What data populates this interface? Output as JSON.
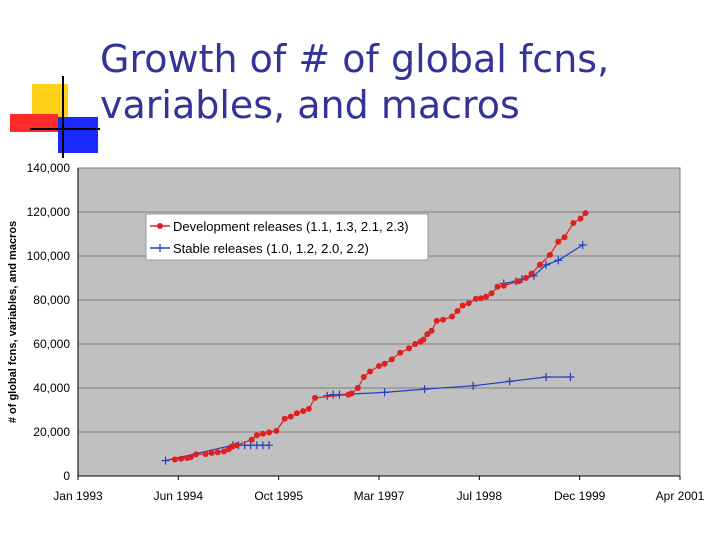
{
  "slide": {
    "title_line1": "Growth of # of global fcns,",
    "title_line2": "variables, and macros",
    "colors": {
      "title": "#333399",
      "deco_yellow": "#ffd21a",
      "deco_red": "#ff2a2a",
      "deco_blue": "#1a2aff",
      "deco_line": "#000000"
    }
  },
  "chart_data": {
    "type": "line",
    "title": "",
    "xlabel": "",
    "ylabel": "# of global fcns, variables, and macros",
    "x_ticks": [
      "Jan 1993",
      "Jun 1994",
      "Oct 1995",
      "Mar 1997",
      "Jul 1998",
      "Dec 1999",
      "Apr 2001"
    ],
    "y_ticks": [
      "0",
      "20,000",
      "40,000",
      "60,000",
      "80,000",
      "100,000",
      "120,000",
      "140,000"
    ],
    "xlim": [
      "1993-01",
      "2001-04"
    ],
    "ylim": [
      0,
      140000
    ],
    "grid": true,
    "legend": "top-left",
    "colors": {
      "plot_bg": "#c0c0c0",
      "grid": "#808080",
      "dev": "#e02020",
      "stable": "#2040c0"
    },
    "series": [
      {
        "name": "Development releases (1.1, 1.3, 2.1, 2.3)",
        "marker": "circle",
        "points": [
          [
            "1994-05-01",
            7500
          ],
          [
            "1994-06-01",
            7800
          ],
          [
            "1994-07-01",
            8200
          ],
          [
            "1994-07-20",
            8600
          ],
          [
            "1994-08-15",
            9800
          ],
          [
            "1994-10-01",
            10000
          ],
          [
            "1994-11-01",
            10500
          ],
          [
            "1994-12-01",
            10800
          ],
          [
            "1995-01-01",
            11200
          ],
          [
            "1995-01-25",
            12200
          ],
          [
            "1995-02-15",
            13500
          ],
          [
            "1995-03-05",
            14000
          ],
          [
            "1995-05-20",
            16500
          ],
          [
            "1995-06-15",
            18500
          ],
          [
            "1995-07-15",
            19200
          ],
          [
            "1995-08-15",
            19800
          ],
          [
            "1995-09-20",
            20500
          ],
          [
            "1995-11-01",
            26000
          ],
          [
            "1995-12-01",
            27000
          ],
          [
            "1996-01-01",
            28500
          ],
          [
            "1996-02-01",
            29500
          ],
          [
            "1996-03-01",
            30500
          ],
          [
            "1996-04-01",
            35500
          ],
          [
            "1996-09-15",
            37000
          ],
          [
            "1996-10-01",
            37500
          ],
          [
            "1996-11-01",
            40000
          ],
          [
            "1996-12-01",
            45000
          ],
          [
            "1997-01-01",
            47500
          ],
          [
            "1997-02-15",
            50000
          ],
          [
            "1997-03-15",
            51000
          ],
          [
            "1997-04-20",
            53000
          ],
          [
            "1997-06-01",
            56000
          ],
          [
            "1997-07-15",
            58000
          ],
          [
            "1997-08-15",
            60000
          ],
          [
            "1997-09-10",
            61000
          ],
          [
            "1997-09-25",
            62000
          ],
          [
            "1997-10-15",
            64500
          ],
          [
            "1997-11-05",
            66000
          ],
          [
            "1997-12-01",
            70500
          ],
          [
            "1998-01-01",
            71000
          ],
          [
            "1998-02-15",
            72500
          ],
          [
            "1998-03-15",
            75000
          ],
          [
            "1998-04-10",
            77500
          ],
          [
            "1998-05-10",
            78500
          ],
          [
            "1998-06-15",
            80500
          ],
          [
            "1998-07-10",
            80800
          ],
          [
            "1998-08-05",
            81500
          ],
          [
            "1998-09-01",
            83000
          ],
          [
            "1998-10-01",
            86000
          ],
          [
            "1998-11-01",
            86500
          ],
          [
            "1999-01-15",
            88500
          ],
          [
            "1999-02-20",
            90000
          ],
          [
            "1999-03-20",
            92000
          ],
          [
            "1999-05-01",
            96000
          ],
          [
            "1999-06-20",
            100500
          ],
          [
            "1999-08-01",
            106500
          ],
          [
            "1999-09-01",
            108500
          ],
          [
            "1999-10-15",
            115000
          ],
          [
            "1999-11-20",
            117000
          ],
          [
            "1999-12-15",
            119500
          ]
        ]
      },
      {
        "name": "Stable releases (1.0, 1.2, 2.0, 2.2)",
        "marker": "plus",
        "points": [
          [
            "1994-03-15",
            7000
          ],
          [
            "1995-02-15",
            14000
          ],
          [
            "1995-03-15",
            14000
          ],
          [
            "1995-04-15",
            14000
          ],
          [
            "1995-05-15",
            14000
          ],
          [
            "1995-06-15",
            14000
          ],
          [
            "1995-07-15",
            14000
          ],
          [
            "1995-08-15",
            14000
          ],
          [
            "1996-06-01",
            36500
          ],
          [
            "1996-07-01",
            37000
          ],
          [
            "1996-08-01",
            37000
          ],
          [
            "1997-03-15",
            38000
          ],
          [
            "1997-10-01",
            39500
          ],
          [
            "1998-06-01",
            41000
          ],
          [
            "1998-12-01",
            43000
          ],
          [
            "1999-06-01",
            45000
          ],
          [
            "1999-10-01",
            45000
          ],
          [
            "1998-11-01",
            87500
          ],
          [
            "1999-01-01",
            88500
          ],
          [
            "1999-02-01",
            89500
          ],
          [
            "1999-04-01",
            91000
          ],
          [
            "1999-06-01",
            96000
          ],
          [
            "1999-08-01",
            98000
          ],
          [
            "1999-12-01",
            105000
          ]
        ],
        "segments": [
          [
            0,
            7
          ],
          [
            8,
            16
          ],
          [
            17,
            23
          ]
        ]
      }
    ]
  }
}
